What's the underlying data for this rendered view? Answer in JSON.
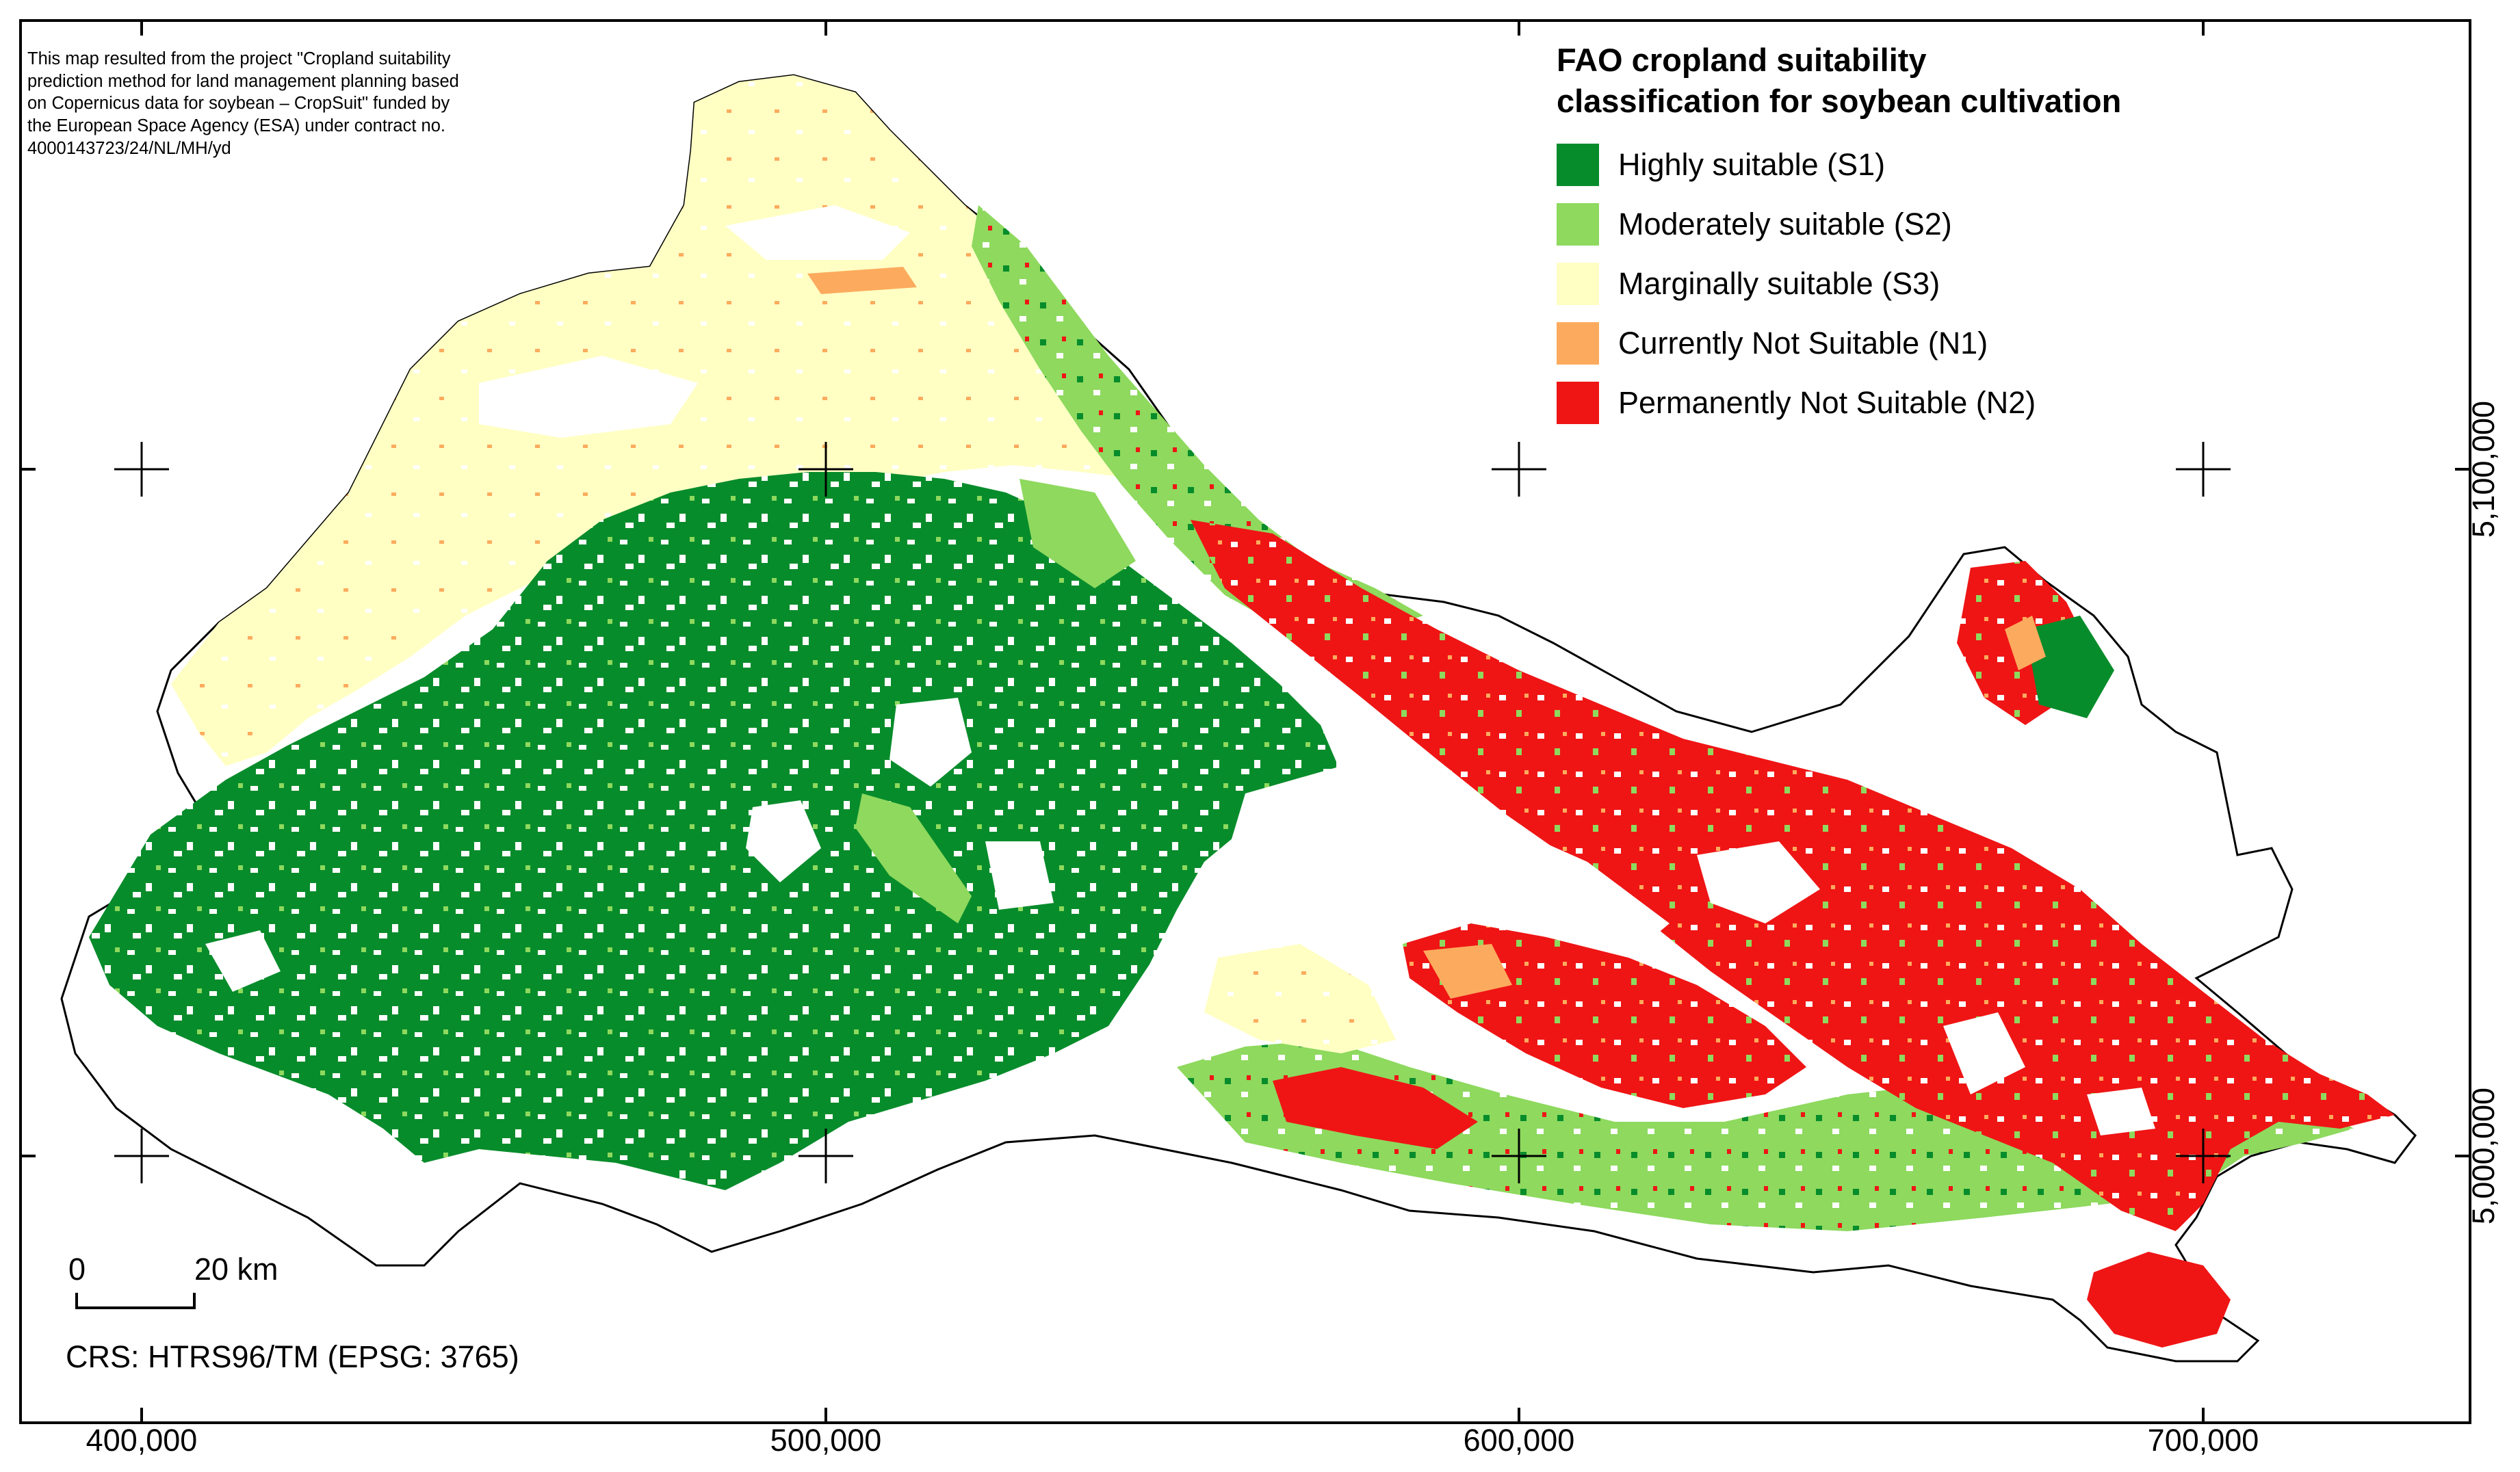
{
  "map": {
    "note_lines": [
      "This map resulted from the project \"Cropland suitability",
      "prediction method for land management planning based",
      "on Copernicus data for soybean – CropSuit\" funded by",
      "the European Space Agency (ESA) under contract no.",
      "4000143723/24/NL/MH/yd"
    ],
    "legend": {
      "title_lines": [
        "FAO cropland suitability",
        "classification for soybean cultivation"
      ],
      "items": [
        {
          "label": "Highly suitable (S1)",
          "color": "#078c2b"
        },
        {
          "label": "Moderately suitable (S2)",
          "color": "#8ed95e"
        },
        {
          "label": "Marginally suitable (S3)",
          "color": "#ffffc4"
        },
        {
          "label": "Currently Not Suitable (N1)",
          "color": "#fcab5e"
        },
        {
          "label": "Permanently Not Suitable (N2)",
          "color": "#ef1515"
        }
      ]
    },
    "scale_bar": {
      "start_label": "0",
      "end_label": "20 km"
    },
    "crs": "CRS: HTRS96/TM (EPSG: 3765)",
    "x_ticks": [
      "400,000",
      "500,000",
      "600,000",
      "700,000"
    ],
    "y_ticks": [
      "5,100,000",
      "5,000,000"
    ],
    "colors": {
      "frame": "#000000",
      "background": "#ffffff",
      "boundary": "#000000"
    }
  }
}
